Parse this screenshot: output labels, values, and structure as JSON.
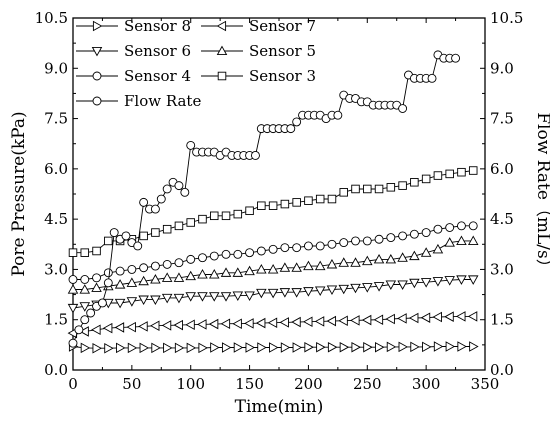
{
  "chart_data": {
    "type": "line",
    "xlabel": "Time(min)",
    "ylabel_left": "Pore Pressure(kPa)",
    "ylabel_right": "Flow Rate（mL/s）",
    "xlim": [
      0,
      350
    ],
    "ylim": [
      0,
      10.5
    ],
    "y2lim": [
      0,
      10.5
    ],
    "x_ticks": [
      0,
      50,
      100,
      150,
      200,
      250,
      300,
      350
    ],
    "y_ticks": [
      0.0,
      1.5,
      3.0,
      4.5,
      6.0,
      7.5,
      9.0,
      10.5
    ],
    "y2_ticks": [
      0.0,
      1.5,
      3.0,
      4.5,
      6.0,
      7.5,
      9.0,
      10.5
    ],
    "grid": false,
    "legend_position": "top-left",
    "series": [
      {
        "name": "Sensor 8",
        "marker": "triangle-right",
        "axis": "left",
        "x": [
          0,
          10,
          20,
          30,
          40,
          50,
          60,
          70,
          80,
          90,
          100,
          110,
          120,
          130,
          140,
          150,
          160,
          170,
          180,
          190,
          200,
          210,
          220,
          230,
          240,
          250,
          260,
          270,
          280,
          290,
          300,
          310,
          320,
          330,
          340
        ],
        "values": [
          0.7,
          0.66,
          0.65,
          0.65,
          0.66,
          0.66,
          0.66,
          0.66,
          0.66,
          0.66,
          0.66,
          0.66,
          0.67,
          0.67,
          0.67,
          0.67,
          0.67,
          0.67,
          0.67,
          0.67,
          0.68,
          0.68,
          0.68,
          0.68,
          0.68,
          0.68,
          0.68,
          0.69,
          0.69,
          0.69,
          0.69,
          0.7,
          0.7,
          0.7,
          0.7
        ]
      },
      {
        "name": "Sensor 7",
        "marker": "triangle-left",
        "axis": "left",
        "x": [
          0,
          10,
          20,
          30,
          40,
          50,
          60,
          70,
          80,
          90,
          100,
          110,
          120,
          130,
          140,
          150,
          160,
          170,
          180,
          190,
          200,
          210,
          220,
          230,
          240,
          250,
          260,
          270,
          280,
          290,
          300,
          310,
          320,
          330,
          340
        ],
        "values": [
          1.1,
          1.15,
          1.2,
          1.25,
          1.27,
          1.28,
          1.3,
          1.32,
          1.33,
          1.34,
          1.35,
          1.36,
          1.37,
          1.38,
          1.38,
          1.39,
          1.4,
          1.41,
          1.42,
          1.43,
          1.44,
          1.45,
          1.46,
          1.47,
          1.48,
          1.49,
          1.5,
          1.52,
          1.54,
          1.55,
          1.56,
          1.58,
          1.59,
          1.6,
          1.6
        ]
      },
      {
        "name": "Sensor 6",
        "marker": "triangle-down",
        "axis": "left",
        "x": [
          0,
          10,
          20,
          30,
          40,
          50,
          60,
          70,
          80,
          90,
          100,
          110,
          120,
          130,
          140,
          150,
          160,
          170,
          180,
          190,
          200,
          210,
          220,
          230,
          240,
          250,
          260,
          270,
          280,
          290,
          300,
          310,
          320,
          330,
          340
        ],
        "values": [
          1.85,
          1.9,
          1.95,
          2.0,
          2.0,
          2.05,
          2.1,
          2.1,
          2.15,
          2.15,
          2.2,
          2.2,
          2.2,
          2.2,
          2.22,
          2.22,
          2.3,
          2.3,
          2.32,
          2.32,
          2.35,
          2.37,
          2.4,
          2.42,
          2.45,
          2.47,
          2.5,
          2.55,
          2.55,
          2.6,
          2.62,
          2.65,
          2.68,
          2.7,
          2.7
        ]
      },
      {
        "name": "Sensor 5",
        "marker": "triangle-up",
        "axis": "left",
        "x": [
          0,
          10,
          20,
          30,
          40,
          50,
          60,
          70,
          80,
          90,
          100,
          110,
          120,
          130,
          140,
          150,
          160,
          170,
          180,
          190,
          200,
          210,
          220,
          230,
          240,
          250,
          260,
          270,
          280,
          290,
          300,
          310,
          320,
          330,
          340
        ],
        "values": [
          2.4,
          2.4,
          2.45,
          2.5,
          2.55,
          2.6,
          2.65,
          2.7,
          2.75,
          2.75,
          2.8,
          2.85,
          2.85,
          2.9,
          2.9,
          2.95,
          3.0,
          3.0,
          3.05,
          3.05,
          3.1,
          3.1,
          3.15,
          3.2,
          3.2,
          3.25,
          3.3,
          3.3,
          3.35,
          3.4,
          3.5,
          3.6,
          3.8,
          3.85,
          3.85
        ]
      },
      {
        "name": "Sensor 4",
        "marker": "circle",
        "axis": "left",
        "x": [
          0,
          10,
          20,
          30,
          40,
          50,
          60,
          70,
          80,
          90,
          100,
          110,
          120,
          130,
          140,
          150,
          160,
          170,
          180,
          190,
          200,
          210,
          220,
          230,
          240,
          250,
          260,
          270,
          280,
          290,
          300,
          310,
          320,
          330,
          340
        ],
        "values": [
          2.7,
          2.7,
          2.75,
          2.9,
          2.95,
          3.0,
          3.05,
          3.1,
          3.15,
          3.2,
          3.3,
          3.35,
          3.4,
          3.45,
          3.45,
          3.5,
          3.55,
          3.6,
          3.65,
          3.65,
          3.7,
          3.7,
          3.75,
          3.8,
          3.85,
          3.85,
          3.9,
          3.95,
          4.0,
          4.05,
          4.1,
          4.2,
          4.25,
          4.3,
          4.3
        ]
      },
      {
        "name": "Sensor 3",
        "marker": "square",
        "axis": "left",
        "x": [
          0,
          10,
          20,
          30,
          40,
          50,
          60,
          70,
          80,
          90,
          100,
          110,
          120,
          130,
          140,
          150,
          160,
          170,
          180,
          190,
          200,
          210,
          220,
          230,
          240,
          250,
          260,
          270,
          280,
          290,
          300,
          310,
          320,
          330,
          340
        ],
        "values": [
          3.5,
          3.5,
          3.55,
          3.85,
          3.85,
          3.9,
          4.0,
          4.1,
          4.2,
          4.3,
          4.4,
          4.5,
          4.6,
          4.6,
          4.65,
          4.75,
          4.9,
          4.9,
          4.95,
          5.0,
          5.05,
          5.1,
          5.1,
          5.3,
          5.4,
          5.4,
          5.4,
          5.45,
          5.5,
          5.6,
          5.7,
          5.8,
          5.85,
          5.9,
          5.95
        ]
      },
      {
        "name": "Flow Rate",
        "marker": "circle",
        "axis": "right",
        "x": [
          0,
          5,
          10,
          15,
          20,
          25,
          30,
          35,
          40,
          45,
          50,
          55,
          60,
          65,
          70,
          75,
          80,
          85,
          90,
          95,
          100,
          105,
          110,
          115,
          120,
          125,
          130,
          135,
          140,
          145,
          150,
          155,
          160,
          165,
          170,
          175,
          180,
          185,
          190,
          195,
          200,
          205,
          210,
          215,
          220,
          225,
          230,
          235,
          240,
          245,
          250,
          255,
          260,
          265,
          270,
          275,
          280,
          285,
          290,
          295,
          300,
          305,
          310,
          315,
          320,
          325
        ],
        "values": [
          0.8,
          1.2,
          1.5,
          1.7,
          1.9,
          2.0,
          2.6,
          4.1,
          3.9,
          4.0,
          3.8,
          3.7,
          5.0,
          4.8,
          4.8,
          5.1,
          5.4,
          5.6,
          5.5,
          5.3,
          6.7,
          6.5,
          6.5,
          6.5,
          6.5,
          6.4,
          6.5,
          6.4,
          6.4,
          6.4,
          6.4,
          6.4,
          7.2,
          7.2,
          7.2,
          7.2,
          7.2,
          7.2,
          7.4,
          7.6,
          7.6,
          7.6,
          7.6,
          7.5,
          7.6,
          7.6,
          8.2,
          8.1,
          8.1,
          8.0,
          8.0,
          7.9,
          7.9,
          7.9,
          7.9,
          7.9,
          7.8,
          8.8,
          8.7,
          8.7,
          8.7,
          8.7,
          9.4,
          9.3,
          9.3,
          9.3
        ]
      }
    ]
  }
}
